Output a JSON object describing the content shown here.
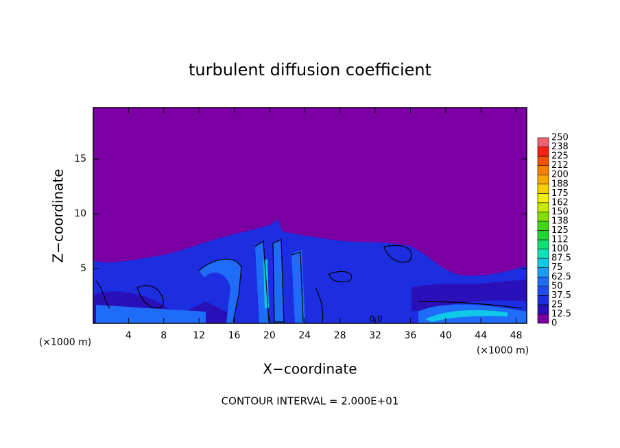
{
  "chart_data": {
    "type": "contour",
    "title": "turbulent diffusion coefficient",
    "x_label": "X−coordinate",
    "y_label": "Z−coordinate",
    "x_unit_label": "(×1000 m)",
    "y_unit_label": "(×1000 m)",
    "footer": "CONTOUR INTERVAL = 2.000E+01",
    "annotations": [
      "0.0"
    ],
    "xlim": [
      0,
      49.2
    ],
    "xticks": [
      4,
      8,
      12,
      16,
      20,
      24,
      28,
      32,
      36,
      40,
      44,
      48
    ],
    "ylim": [
      0,
      19.7
    ],
    "yticks": [
      5,
      10,
      15
    ],
    "colorbar": {
      "levels": [
        0,
        12.5,
        25,
        37.5,
        50,
        62.5,
        75,
        87.5,
        100,
        {
          "value": 112.5,
          "label": "112"
        },
        125,
        {
          "value": 137.5,
          "label": "138"
        },
        150,
        {
          "value": 162.5,
          "label": "162"
        },
        175,
        {
          "value": 187.5,
          "label": "188"
        },
        200,
        {
          "value": 212.5,
          "label": "212"
        },
        225,
        {
          "value": 237.5,
          "label": "238"
        },
        250
      ],
      "colors": [
        "#7a00a4",
        "#2a10b8",
        "#1c2ee0",
        "#1e4cf2",
        "#1e6cf8",
        "#1a9cf4",
        "#10c8e8",
        "#12e0b8",
        "#10e070",
        "#20d830",
        "#40d810",
        "#80e000",
        "#c8e800",
        "#f0f000",
        "#f8d000",
        "#f8a800",
        "#f88000",
        "#f85000",
        "#f82010",
        "#f06070"
      ]
    }
  }
}
